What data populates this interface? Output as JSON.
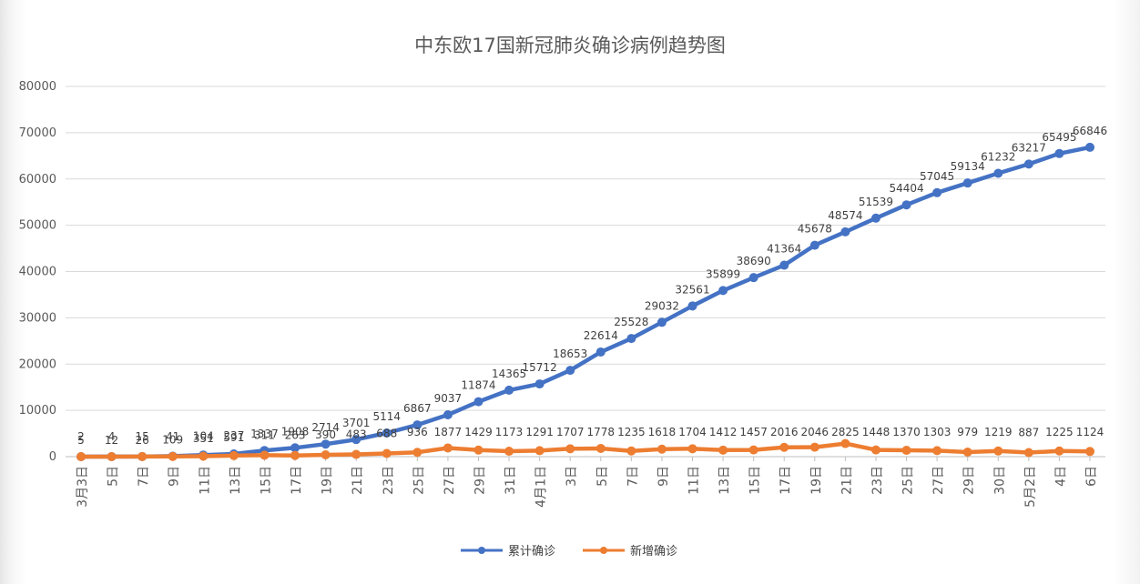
{
  "chart_data": {
    "type": "line",
    "title": "中东欧17国新冠肺炎确诊病例趋势图",
    "xlabel": "",
    "ylabel": "",
    "ylim": [
      0,
      80000
    ],
    "yticks": [
      0,
      10000,
      20000,
      30000,
      40000,
      50000,
      60000,
      70000,
      80000
    ],
    "grid": true,
    "legend_position": "bottom",
    "categories": [
      "3月3日",
      "5日",
      "7日",
      "9日",
      "11日",
      "13日",
      "15日",
      "17日",
      "19日",
      "21日",
      "23日",
      "25日",
      "27日",
      "29日",
      "31日",
      "4月1日",
      "3日",
      "5日",
      "7日",
      "9日",
      "11日",
      "13日",
      "15日",
      "17日",
      "19日",
      "21日",
      "23日",
      "25日",
      "27日",
      "29日",
      "30日",
      "5月2日",
      "4日",
      "6日"
    ],
    "series": [
      {
        "name": "累计确诊",
        "color": "#4472c4",
        "values": [
          5,
          12,
          26,
          109,
          351,
          591,
          1337,
          1908,
          2714,
          3701,
          5114,
          6867,
          9037,
          11874,
          14365,
          15712,
          18653,
          22614,
          25528,
          29032,
          32561,
          35899,
          38690,
          41364,
          45678,
          48574,
          51539,
          54404,
          57045,
          59134,
          61232,
          63217,
          65495,
          66846
        ]
      },
      {
        "name": "新增确诊",
        "color": "#ed7d31",
        "values": [
          2,
          4,
          15,
          41,
          104,
          237,
          311,
          263,
          390,
          483,
          688,
          936,
          1877,
          1429,
          1173,
          1291,
          1707,
          1778,
          1235,
          1618,
          1704,
          1412,
          1457,
          2016,
          2046,
          2825,
          1448,
          1370,
          1303,
          979,
          1219,
          887,
          1225,
          1124
        ]
      }
    ]
  }
}
